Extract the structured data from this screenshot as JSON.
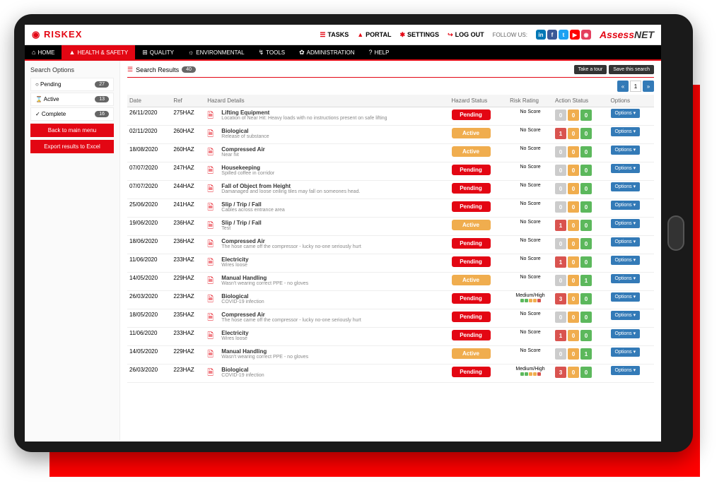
{
  "brand": "RISKEX",
  "topnav": [
    {
      "label": "TASKS",
      "icon": "☰",
      "color": "#e30613"
    },
    {
      "label": "PORTAL",
      "icon": "▲",
      "color": "#e30613"
    },
    {
      "label": "SETTINGS",
      "icon": "✱",
      "color": "#e30613"
    },
    {
      "label": "LOG OUT",
      "icon": "↪",
      "color": "#e30613"
    }
  ],
  "follow_label": "FOLLOW US:",
  "social": [
    {
      "name": "linkedin",
      "bg": "#0077b5",
      "txt": "in"
    },
    {
      "name": "facebook",
      "bg": "#3b5998",
      "txt": "f"
    },
    {
      "name": "twitter",
      "bg": "#1da1f2",
      "txt": "t"
    },
    {
      "name": "youtube",
      "bg": "#ff0000",
      "txt": "▶"
    },
    {
      "name": "instagram",
      "bg": "#e4405f",
      "txt": "◉"
    }
  ],
  "assess_prefix": "Assess",
  "assess_suf": "NET",
  "nav": [
    {
      "icon": "⌂",
      "label": "HOME"
    },
    {
      "icon": "▲",
      "label": "HEALTH & SAFETY",
      "active": true
    },
    {
      "icon": "⊞",
      "label": "QUALITY"
    },
    {
      "icon": "☼",
      "label": "ENVIRONMENTAL"
    },
    {
      "icon": "↯",
      "label": "TOOLS"
    },
    {
      "icon": "✿",
      "label": "ADMINISTRATION"
    },
    {
      "icon": "?",
      "label": "HELP"
    }
  ],
  "sidebar": {
    "title": "Search Options",
    "filters": [
      {
        "icon": "○",
        "label": "Pending",
        "count": "27"
      },
      {
        "icon": "⌛",
        "label": "Active",
        "count": "13"
      },
      {
        "icon": "✓",
        "label": "Complete",
        "count": "16"
      }
    ],
    "back_btn": "Back to main menu",
    "export_btn": "Export results to Excel"
  },
  "results": {
    "title": "Search Results",
    "count": "40",
    "take_tour": "Take a tour",
    "save_search": "Save this search",
    "page": "1",
    "prev": "«",
    "next": "»"
  },
  "columns": {
    "date": "Date",
    "ref": "Ref",
    "details": "Hazard Details",
    "status": "Hazard Status",
    "risk": "Risk Rating",
    "action": "Action Status",
    "options": "Options"
  },
  "options_label": "Options ▾",
  "colors": {
    "red": "#e30613",
    "orange": "#f0ad4e",
    "blue": "#337ab7",
    "box_red": "#d9534f",
    "box_amber": "#f0ad4e",
    "box_green": "#5cb85c",
    "box_grey": "#ccc"
  },
  "rows": [
    {
      "date": "26/11/2020",
      "ref": "275HAZ",
      "title": "Lifting Equipment",
      "desc": "Location of Near Hit: Heavy loads with no instructions present on safe lifting",
      "status": "Pending",
      "risk": "No Score",
      "a": [
        "0",
        "0",
        "0"
      ],
      "ac": [
        "grey",
        "amber",
        "green"
      ]
    },
    {
      "date": "02/11/2020",
      "ref": "260HAZ",
      "title": "Biological",
      "desc": "Release of substance",
      "status": "Active",
      "risk": "No Score",
      "a": [
        "1",
        "0",
        "0"
      ],
      "ac": [
        "red",
        "amber",
        "green"
      ]
    },
    {
      "date": "18/08/2020",
      "ref": "260HAZ",
      "title": "Compressed Air",
      "desc": "Near hit",
      "status": "Active",
      "risk": "No Score",
      "a": [
        "0",
        "0",
        "0"
      ],
      "ac": [
        "grey",
        "amber",
        "green"
      ]
    },
    {
      "date": "07/07/2020",
      "ref": "247HAZ",
      "title": "Housekeeping",
      "desc": "Spilled coffee in corridor",
      "status": "Pending",
      "risk": "No Score",
      "a": [
        "0",
        "0",
        "0"
      ],
      "ac": [
        "grey",
        "amber",
        "green"
      ]
    },
    {
      "date": "07/07/2020",
      "ref": "244HAZ",
      "title": "Fall of Object from Height",
      "desc": "Damanaged and loose ceiling tiles may fall on someones head.",
      "status": "Pending",
      "risk": "No Score",
      "a": [
        "0",
        "0",
        "0"
      ],
      "ac": [
        "grey",
        "amber",
        "green"
      ]
    },
    {
      "date": "25/06/2020",
      "ref": "241HAZ",
      "title": "Slip / Trip / Fall",
      "desc": "Cables across entrance area",
      "status": "Pending",
      "risk": "No Score",
      "a": [
        "0",
        "0",
        "0"
      ],
      "ac": [
        "grey",
        "amber",
        "green"
      ]
    },
    {
      "date": "19/06/2020",
      "ref": "236HAZ",
      "title": "Slip / Trip / Fall",
      "desc": "Test",
      "status": "Active",
      "risk": "No Score",
      "a": [
        "1",
        "0",
        "0"
      ],
      "ac": [
        "red",
        "amber",
        "green"
      ]
    },
    {
      "date": "18/06/2020",
      "ref": "236HAZ",
      "title": "Compressed Air",
      "desc": "The hose came off the compressor - lucky no-one seriously hurt",
      "status": "Pending",
      "risk": "No Score",
      "a": [
        "0",
        "0",
        "0"
      ],
      "ac": [
        "grey",
        "amber",
        "green"
      ]
    },
    {
      "date": "11/06/2020",
      "ref": "233HAZ",
      "title": "Electricity",
      "desc": "Wires loose",
      "status": "Pending",
      "risk": "No Score",
      "a": [
        "1",
        "0",
        "0"
      ],
      "ac": [
        "red",
        "amber",
        "green"
      ]
    },
    {
      "date": "14/05/2020",
      "ref": "229HAZ",
      "title": "Manual Handling",
      "desc": "Wasn't wearing correct PPE - no gloves",
      "status": "Active",
      "risk": "No Score",
      "a": [
        "0",
        "0",
        "1"
      ],
      "ac": [
        "grey",
        "amber",
        "green"
      ]
    },
    {
      "date": "26/03/2020",
      "ref": "223HAZ",
      "title": "Biological",
      "desc": "COVID-19 infection",
      "status": "Pending",
      "risk": "Medium/High",
      "dots": true,
      "a": [
        "3",
        "0",
        "0"
      ],
      "ac": [
        "red",
        "amber",
        "green"
      ]
    },
    {
      "date": "18/05/2020",
      "ref": "235HAZ",
      "title": "Compressed Air",
      "desc": "The hose came off the compressor - lucky no-one seriously hurt",
      "status": "Pending",
      "risk": "No Score",
      "a": [
        "0",
        "0",
        "0"
      ],
      "ac": [
        "grey",
        "amber",
        "green"
      ]
    },
    {
      "date": "11/06/2020",
      "ref": "233HAZ",
      "title": "Electricity",
      "desc": "Wires loose",
      "status": "Pending",
      "risk": "No Score",
      "a": [
        "1",
        "0",
        "0"
      ],
      "ac": [
        "red",
        "amber",
        "green"
      ]
    },
    {
      "date": "14/05/2020",
      "ref": "229HAZ",
      "title": "Manual Handling",
      "desc": "Wasn't wearing correct PPE - no gloves",
      "status": "Active",
      "risk": "No Score",
      "a": [
        "0",
        "0",
        "1"
      ],
      "ac": [
        "grey",
        "amber",
        "green"
      ]
    },
    {
      "date": "26/03/2020",
      "ref": "223HAZ",
      "title": "Biological",
      "desc": "COVID-19 infection",
      "status": "Pending",
      "risk": "Medium/High",
      "dots": true,
      "a": [
        "3",
        "0",
        "0"
      ],
      "ac": [
        "red",
        "amber",
        "green"
      ]
    }
  ]
}
